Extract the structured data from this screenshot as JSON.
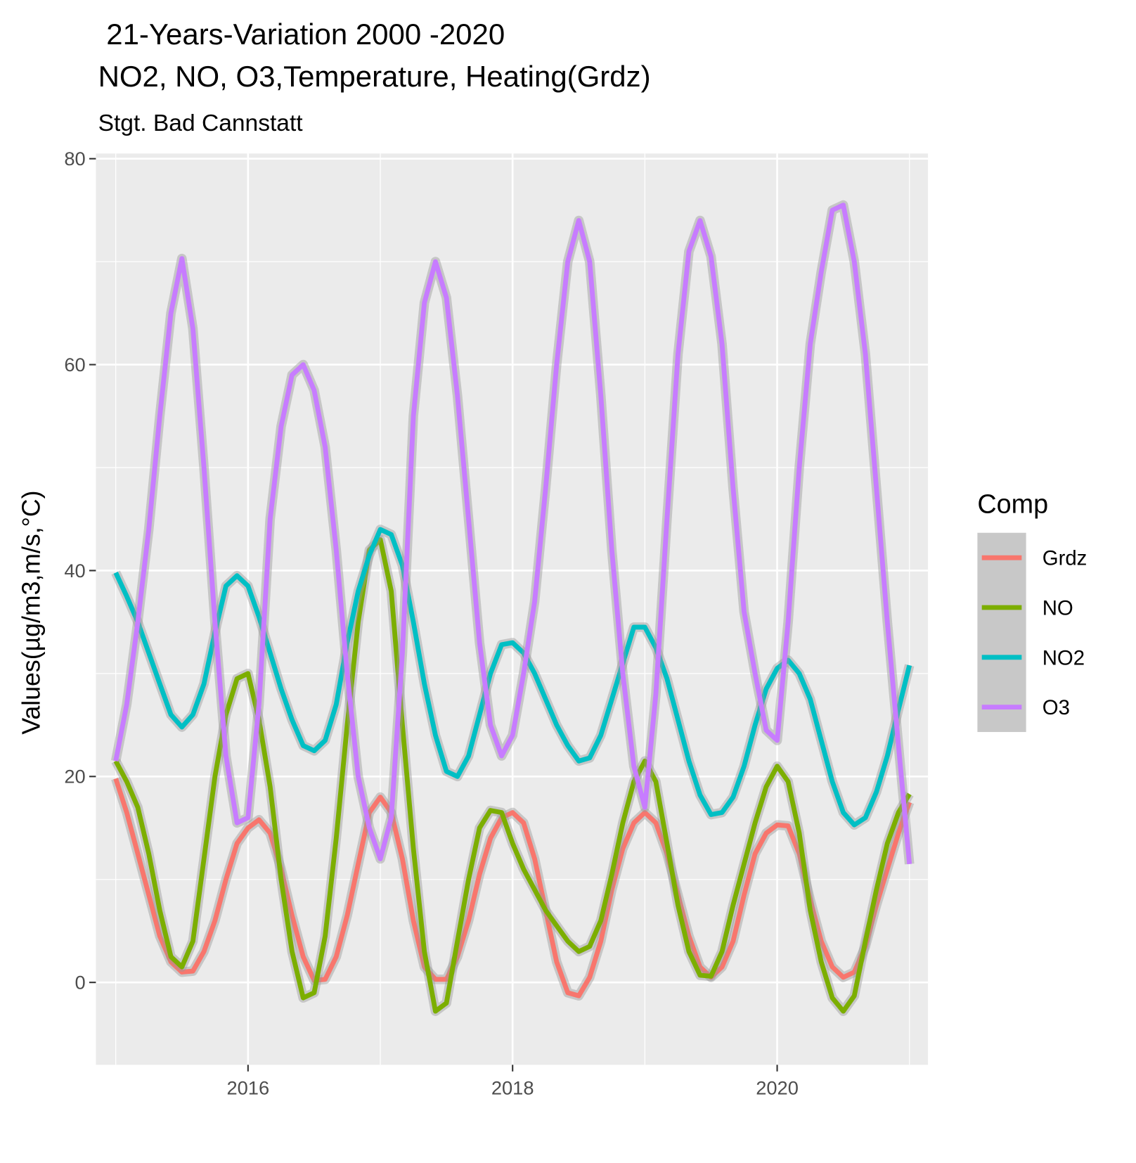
{
  "chart_data": {
    "type": "line",
    "title": " 21-Years-Variation 2000 -2020",
    "title_line2": "NO2, NO, O3,Temperature, Heating(Grdz)",
    "subtitle": "Stgt. Bad Cannstatt",
    "y_label": "Values(µg/m3,m/s,°C)",
    "legend_title": "Comp",
    "x": [
      2015,
      2015.083,
      2015.167,
      2015.25,
      2015.333,
      2015.417,
      2015.5,
      2015.583,
      2015.667,
      2015.75,
      2015.833,
      2015.917,
      2016,
      2016.083,
      2016.167,
      2016.25,
      2016.333,
      2016.417,
      2016.5,
      2016.583,
      2016.667,
      2016.75,
      2016.833,
      2016.917,
      2017,
      2017.083,
      2017.167,
      2017.25,
      2017.333,
      2017.417,
      2017.5,
      2017.583,
      2017.667,
      2017.75,
      2017.833,
      2017.917,
      2018,
      2018.083,
      2018.167,
      2018.25,
      2018.333,
      2018.417,
      2018.5,
      2018.583,
      2018.667,
      2018.75,
      2018.833,
      2018.917,
      2019,
      2019.083,
      2019.167,
      2019.25,
      2019.333,
      2019.417,
      2019.5,
      2019.583,
      2019.667,
      2019.75,
      2019.833,
      2019.917,
      2020,
      2020.083,
      2020.167,
      2020.25,
      2020.333,
      2020.417,
      2020.5,
      2020.583,
      2020.667,
      2020.75,
      2020.833,
      2020.917,
      2021
    ],
    "series": [
      {
        "name": "Grdz",
        "color": "#F8766D",
        "values": [
          19.8,
          16.5,
          12.5,
          8.5,
          4.5,
          2,
          1,
          1.1,
          3,
          6,
          10,
          13.5,
          15,
          15.8,
          14.5,
          11,
          6.5,
          2.5,
          0.2,
          0.3,
          2.5,
          6.5,
          11.5,
          16.5,
          18,
          16.5,
          12,
          6,
          1.5,
          0.3,
          0.3,
          2.5,
          6,
          10.5,
          14,
          16,
          16.5,
          15.5,
          12,
          7,
          2,
          -1,
          -1.3,
          0.5,
          4,
          9,
          13,
          15.5,
          16.5,
          15.5,
          12.5,
          8.5,
          4.5,
          1.5,
          0.5,
          1.5,
          4,
          8.5,
          12.5,
          14.5,
          15.3,
          15.2,
          12.5,
          8,
          4,
          1.5,
          0.5,
          1,
          3.5,
          7.5,
          11,
          14.5,
          17.5
        ]
      },
      {
        "name": "NO",
        "color": "#7CAE00",
        "values": [
          21.5,
          19.5,
          17,
          12.5,
          7,
          2.5,
          1.5,
          4,
          12,
          20,
          26,
          29.5,
          30,
          25.5,
          19,
          10,
          3,
          -1.5,
          -1,
          4.5,
          14,
          25,
          35,
          42,
          43,
          38,
          25,
          13,
          3,
          -2.8,
          -2,
          4,
          10,
          15,
          16.7,
          16.5,
          13.5,
          11,
          9,
          7,
          5.5,
          4,
          3,
          3.5,
          6,
          10.5,
          15.5,
          19.5,
          21.5,
          19.5,
          13.5,
          7.5,
          3,
          0.7,
          0.6,
          3,
          7.5,
          11.5,
          15.5,
          19,
          21,
          19.5,
          14.5,
          7,
          2,
          -1.5,
          -2.8,
          -1.3,
          4,
          9,
          13.5,
          16.5,
          18.3
        ]
      },
      {
        "name": "NO2",
        "color": "#00BFC4",
        "values": [
          39.8,
          37.5,
          35,
          32,
          29,
          26,
          24.8,
          26,
          29,
          34,
          38.5,
          39.5,
          38.5,
          35.5,
          32,
          28.5,
          25.5,
          23,
          22.5,
          23.5,
          27,
          33,
          38,
          41.5,
          44,
          43.5,
          40.5,
          35,
          29,
          24,
          20.5,
          20,
          22,
          26,
          30,
          32.8,
          33,
          32,
          30,
          27.5,
          25,
          23,
          21.5,
          21.8,
          24,
          27.5,
          31,
          34.5,
          34.5,
          32.5,
          29.5,
          25.5,
          21.5,
          18.2,
          16.3,
          16.5,
          18,
          21,
          25,
          28.5,
          30.5,
          31.3,
          30,
          27.5,
          23.5,
          19.5,
          16.5,
          15.3,
          16,
          18.5,
          22,
          26.5,
          30.8
        ]
      },
      {
        "name": "O3",
        "color": "#C77CFF",
        "values": [
          21.5,
          27,
          35,
          44,
          55,
          65,
          70.3,
          63.5,
          50,
          35,
          22,
          15.5,
          16,
          27,
          45,
          54,
          59,
          60,
          57.5,
          52,
          42,
          30,
          20,
          15,
          12,
          16,
          32,
          55,
          66,
          70,
          66.5,
          57,
          45,
          33,
          25,
          22,
          24,
          30,
          37,
          48,
          60,
          70,
          74,
          70,
          57,
          42,
          30,
          21,
          17,
          28,
          45,
          61,
          71,
          74,
          70.5,
          62,
          48,
          36,
          30,
          24.5,
          23.5,
          35,
          50,
          62,
          69,
          75,
          75.5,
          70,
          61,
          48,
          35,
          23,
          11.5
        ]
      }
    ],
    "xlim": [
      2014.85,
      2021.14
    ],
    "xticks": [
      2016,
      2018,
      2020
    ],
    "ylim": [
      -8,
      80.5
    ],
    "yticks": [
      0,
      20,
      40,
      60,
      80
    ],
    "grid": true
  }
}
